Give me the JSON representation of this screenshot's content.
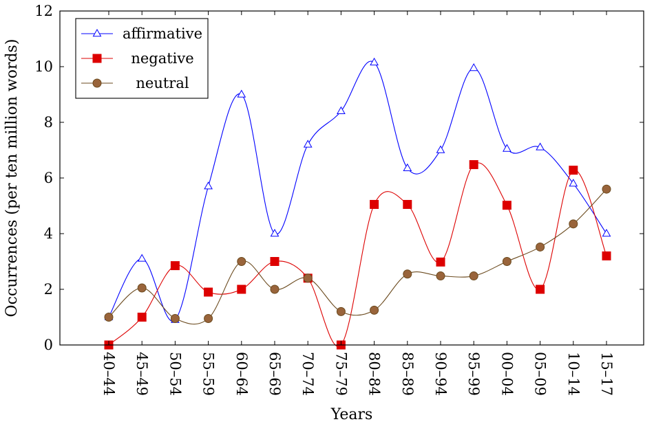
{
  "chart_data": {
    "type": "line",
    "categories": [
      "40–44",
      "45–49",
      "50–54",
      "55–59",
      "60–64",
      "65–69",
      "70–74",
      "75–79",
      "80–84",
      "85–89",
      "90–94",
      "95–99",
      "00–04",
      "05–09",
      "10–14",
      "15–17"
    ],
    "xlabel": "Years",
    "ylabel": "Occurrences (per ten million words)",
    "ylim": [
      0,
      12
    ],
    "yticks": [
      0,
      2,
      4,
      6,
      8,
      10,
      12
    ],
    "legend_position": "top-left",
    "grid": false,
    "series": [
      {
        "name": "affirmative",
        "color": "#0000ff",
        "marker": "triangle",
        "values": [
          1.0,
          3.1,
          0.9,
          5.7,
          9.0,
          4.0,
          7.2,
          8.4,
          10.15,
          6.35,
          7.0,
          9.95,
          7.05,
          7.1,
          5.8,
          4.0
        ]
      },
      {
        "name": "negative",
        "color": "#dd0000",
        "marker": "square",
        "values": [
          0.0,
          1.0,
          2.85,
          1.9,
          2.0,
          3.0,
          2.4,
          0.0,
          5.05,
          5.05,
          2.98,
          6.48,
          5.02,
          2.0,
          6.28,
          3.2
        ]
      },
      {
        "name": "neutral",
        "color": "#6b4a1e",
        "fill": "#99643b",
        "marker": "circle",
        "values": [
          1.0,
          2.05,
          0.95,
          0.95,
          3.0,
          2.0,
          2.4,
          1.2,
          1.25,
          2.55,
          2.48,
          2.48,
          3.0,
          3.52,
          4.35,
          5.6
        ]
      }
    ]
  }
}
